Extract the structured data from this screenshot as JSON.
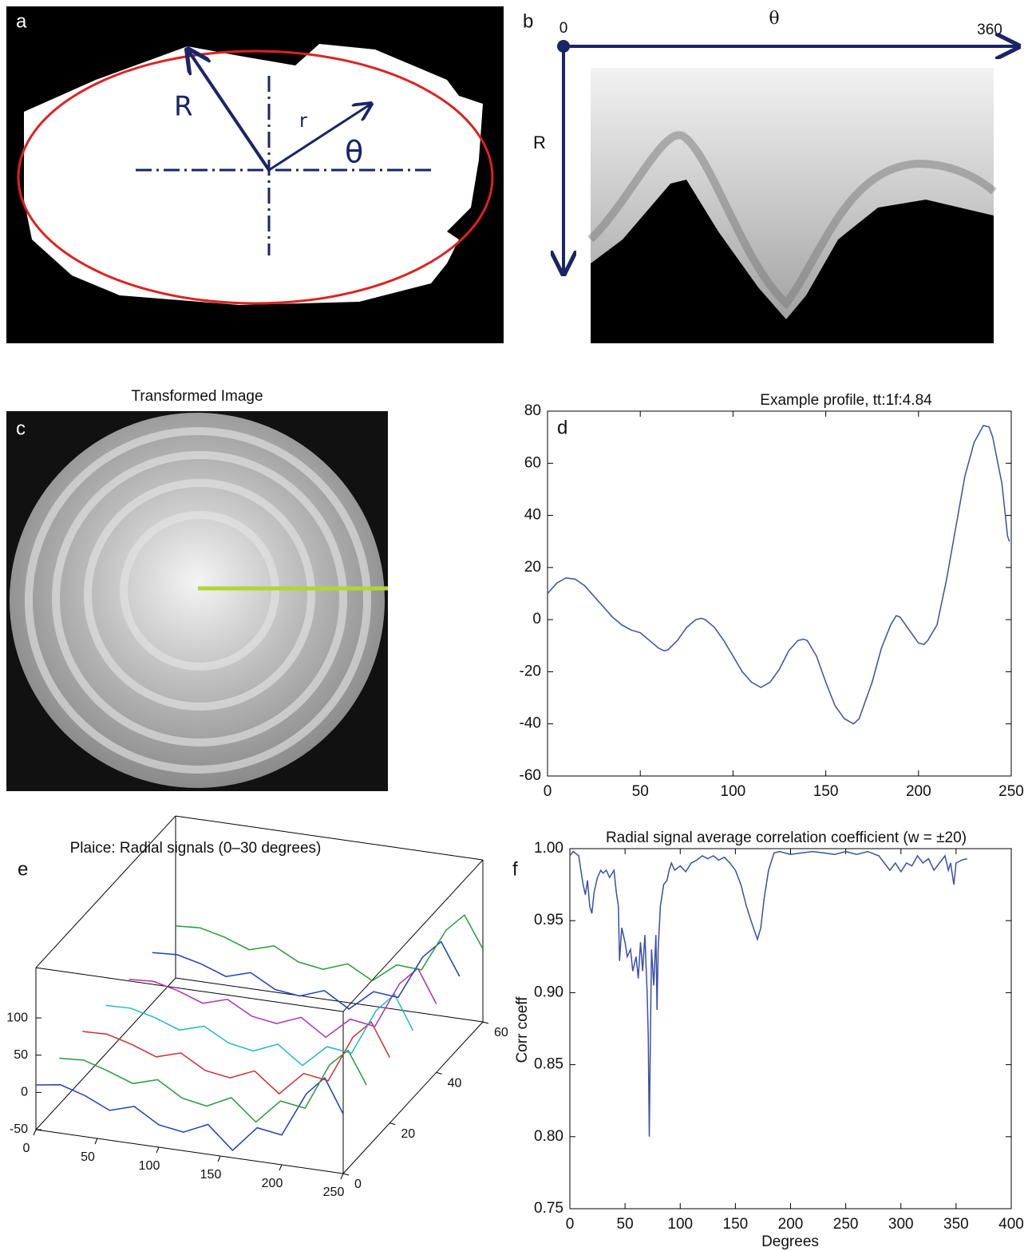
{
  "chart_data": [
    {
      "type": "image",
      "panel": "a",
      "annotations": [
        "R",
        "r",
        "θ"
      ]
    },
    {
      "type": "image",
      "panel": "b",
      "xlabel": "θ",
      "ylabel": "R",
      "xticks": [
        0,
        360
      ]
    },
    {
      "type": "image",
      "panel": "c",
      "title": "Transformed Image"
    },
    {
      "type": "line",
      "panel": "d",
      "title": "Example profile, tt:1f:4.84",
      "color": "#3b4fa8",
      "x": [
        0,
        5,
        10,
        15,
        20,
        25,
        30,
        35,
        40,
        45,
        50,
        55,
        60,
        63,
        65,
        70,
        75,
        80,
        83,
        85,
        90,
        95,
        100,
        105,
        110,
        115,
        120,
        125,
        130,
        135,
        138,
        140,
        145,
        150,
        155,
        160,
        165,
        168,
        170,
        175,
        180,
        185,
        188,
        190,
        195,
        200,
        203,
        205,
        210,
        215,
        220,
        225,
        230,
        235,
        238,
        240,
        245,
        248,
        249
      ],
      "values": [
        10,
        14,
        16,
        15.5,
        13,
        9,
        5,
        1,
        -2,
        -4,
        -5,
        -8,
        -11,
        -12,
        -11.5,
        -8,
        -3,
        0,
        0.5,
        0,
        -3,
        -8,
        -14,
        -20,
        -24,
        -26,
        -24,
        -19,
        -12,
        -8,
        -7.5,
        -8,
        -14,
        -24,
        -33,
        -38,
        -40,
        -38,
        -34,
        -24,
        -11,
        -2,
        1.5,
        1,
        -4,
        -9,
        -9.5,
        -8,
        -2,
        15,
        35,
        55,
        68,
        74.5,
        74,
        70,
        52,
        32,
        30
      ],
      "xlim": [
        0,
        250
      ],
      "xticks": [
        0,
        50,
        100,
        150,
        200,
        250
      ],
      "ylim": [
        -60,
        80
      ],
      "yticks": [
        -60,
        -40,
        -20,
        0,
        20,
        40,
        60,
        80
      ]
    },
    {
      "type": "waterfall",
      "panel": "e",
      "title": "Plaice: Radial signals (0–30 degrees)",
      "x": [
        0,
        20,
        40,
        60,
        80,
        100,
        120,
        140,
        160,
        180,
        200,
        220,
        235,
        250
      ],
      "series": [
        {
          "color": "#1f3fbf",
          "depth": 0,
          "values": [
            10,
            15,
            5,
            -10,
            0,
            -20,
            -25,
            -10,
            -40,
            -5,
            -10,
            50,
            75,
            30
          ]
        },
        {
          "color": "#2a9a3a",
          "depth": 10,
          "values": [
            12,
            14,
            4,
            -8,
            2,
            -18,
            -24,
            -8,
            -36,
            -3,
            -8,
            55,
            78,
            35
          ]
        },
        {
          "color": "#d03030",
          "depth": 20,
          "values": [
            14,
            15,
            6,
            -6,
            4,
            -15,
            -20,
            -6,
            -32,
            0,
            -5,
            58,
            82,
            38
          ]
        },
        {
          "color": "#20b8c8",
          "depth": 30,
          "values": [
            15,
            16,
            8,
            -4,
            6,
            -12,
            -18,
            -4,
            -28,
            2,
            -2,
            60,
            85,
            40
          ]
        },
        {
          "color": "#b030b0",
          "depth": 40,
          "values": [
            16,
            18,
            10,
            -2,
            8,
            -10,
            -15,
            -2,
            -24,
            5,
            0,
            62,
            86,
            42
          ]
        },
        {
          "color": "#1f3fbf",
          "depth": 50,
          "values": [
            18,
            20,
            12,
            0,
            10,
            -8,
            -12,
            0,
            -20,
            8,
            5,
            64,
            88,
            45
          ]
        },
        {
          "color": "#2a9a3a",
          "depth": 60,
          "values": [
            20,
            22,
            14,
            2,
            12,
            -5,
            -10,
            2,
            -16,
            10,
            8,
            66,
            90,
            48
          ]
        }
      ],
      "xlim": [
        0,
        250
      ],
      "xticks": [
        0,
        50,
        100,
        150,
        200,
        250
      ],
      "ylim": [
        0,
        60
      ],
      "yticks": [
        0,
        20,
        40,
        60
      ],
      "zlim": [
        -50,
        100
      ],
      "zticks": [
        -50,
        0,
        50,
        100
      ]
    },
    {
      "type": "line",
      "panel": "f",
      "title": "Radial signal average correlation coefficient (w = ±20)",
      "xlabel": "Degrees",
      "ylabel": "Corr coeff",
      "color": "#3b4fa8",
      "x": [
        0,
        3,
        8,
        10,
        12,
        14,
        16,
        18,
        20,
        22,
        25,
        28,
        30,
        33,
        36,
        40,
        42,
        44,
        45,
        47,
        50,
        52,
        55,
        57,
        60,
        62,
        64,
        66,
        68,
        70,
        71,
        72,
        73,
        74,
        76,
        78,
        79,
        80,
        82,
        85,
        88,
        90,
        92,
        95,
        100,
        105,
        110,
        115,
        120,
        125,
        130,
        135,
        140,
        145,
        150,
        155,
        160,
        165,
        170,
        173,
        176,
        180,
        185,
        190,
        200,
        210,
        220,
        230,
        240,
        250,
        260,
        270,
        280,
        290,
        295,
        300,
        305,
        310,
        315,
        320,
        325,
        330,
        335,
        340,
        343,
        345,
        348,
        350,
        355,
        360
      ],
      "values": [
        0.995,
        0.998,
        0.995,
        0.985,
        0.975,
        0.968,
        0.978,
        0.96,
        0.955,
        0.97,
        0.98,
        0.985,
        0.983,
        0.985,
        0.98,
        0.985,
        0.97,
        0.96,
        0.922,
        0.945,
        0.935,
        0.925,
        0.93,
        0.915,
        0.925,
        0.91,
        0.935,
        0.915,
        0.94,
        0.9,
        0.87,
        0.8,
        0.87,
        0.93,
        0.905,
        0.94,
        0.888,
        0.93,
        0.96,
        0.975,
        0.978,
        0.985,
        0.99,
        0.985,
        0.988,
        0.984,
        0.99,
        0.992,
        0.995,
        0.993,
        0.995,
        0.992,
        0.994,
        0.99,
        0.985,
        0.975,
        0.96,
        0.948,
        0.937,
        0.945,
        0.965,
        0.985,
        0.997,
        0.998,
        0.996,
        0.997,
        0.998,
        0.997,
        0.996,
        0.998,
        0.996,
        0.998,
        0.995,
        0.985,
        0.99,
        0.984,
        0.99,
        0.988,
        0.995,
        0.99,
        0.993,
        0.985,
        0.99,
        0.995,
        0.985,
        0.99,
        0.975,
        0.99,
        0.992,
        0.993
      ],
      "xlim": [
        0,
        400
      ],
      "xticks": [
        0,
        50,
        100,
        150,
        200,
        250,
        300,
        350,
        400
      ],
      "ylim": [
        0.75,
        1
      ],
      "yticks": [
        0.75,
        {
          "value": 0.8,
          "label": "0.80"
        },
        0.85,
        {
          "value": 0.9,
          "label": "0.90"
        },
        0.95,
        {
          "value": 1,
          "label": "1.00"
        }
      ]
    }
  ]
}
